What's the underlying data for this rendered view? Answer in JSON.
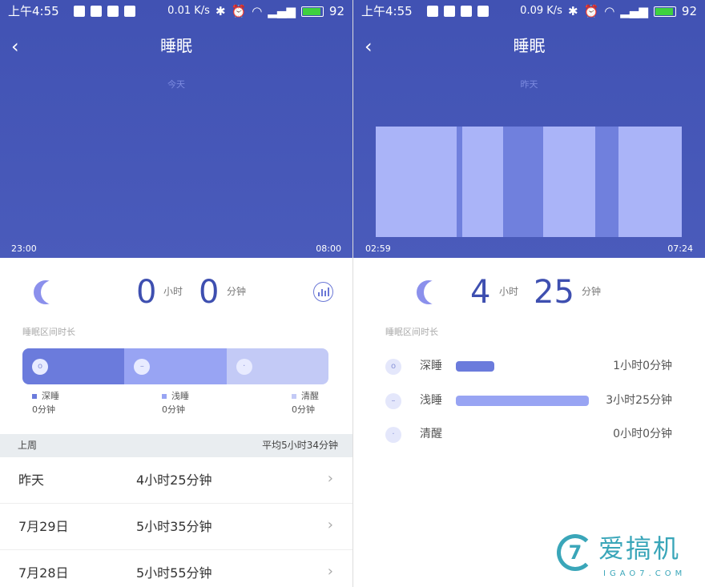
{
  "left": {
    "status": {
      "time": "上午4:55",
      "speed": "0.01 K/s",
      "battery": "92",
      "battery_color": "#3fd13f"
    },
    "title": "睡眠",
    "day": "今天",
    "start": "23:00",
    "end": "08:00",
    "hours": "0",
    "hours_unit": "小时",
    "minutes": "0",
    "minutes_unit": "分钟",
    "section_label": "睡眠区间时长",
    "legend": [
      {
        "label": "深睡",
        "value": "0分钟",
        "color": "#6b7bdc"
      },
      {
        "label": "浅睡",
        "value": "0分钟",
        "color": "#98a4f3"
      },
      {
        "label": "清醒",
        "value": "0分钟",
        "color": "#c3caf6"
      }
    ],
    "week": {
      "label": "上周",
      "avg": "平均5小时34分钟"
    },
    "rows": [
      {
        "date": "昨天",
        "value": "4小时25分钟"
      },
      {
        "date": "7月29日",
        "value": "5小时35分钟"
      },
      {
        "date": "7月28日",
        "value": "5小时55分钟"
      }
    ]
  },
  "right": {
    "status": {
      "time": "上午4:55",
      "speed": "0.09 K/s",
      "battery": "92"
    },
    "title": "睡眠",
    "day": "昨天",
    "start": "02:59",
    "end": "07:24",
    "hours": "4",
    "hours_unit": "小时",
    "minutes": "25",
    "minutes_unit": "分钟",
    "section_label": "睡眠区间时长",
    "stages": [
      {
        "label": "深睡",
        "value": "1小时0分钟",
        "fraction": 0.29,
        "color": "#6b7bdc"
      },
      {
        "label": "浅睡",
        "value": "3小时25分钟",
        "fraction": 1.0,
        "color": "#98a4f3"
      },
      {
        "label": "清醒",
        "value": "0小时0分钟",
        "fraction": 0,
        "color": "#c3caf6"
      }
    ]
  },
  "chart_data": {
    "type": "bar",
    "xlabel": "",
    "ylabel": "",
    "x_range": [
      "02:59",
      "07:24"
    ],
    "segments": [
      {
        "stage": "浅睡",
        "minutes": 70
      },
      {
        "stage": "深睡",
        "minutes": 5
      },
      {
        "stage": "浅睡",
        "minutes": 35
      },
      {
        "stage": "深睡",
        "minutes": 35
      },
      {
        "stage": "浅睡",
        "minutes": 45
      },
      {
        "stage": "深睡",
        "minutes": 20
      },
      {
        "stage": "浅睡",
        "minutes": 55
      }
    ],
    "colors": {
      "深睡": "#7080dd",
      "浅睡": "#aab4f8"
    }
  },
  "watermark": {
    "cn": "爱搞机",
    "en": "IGAO7.COM",
    "mark": "7"
  }
}
